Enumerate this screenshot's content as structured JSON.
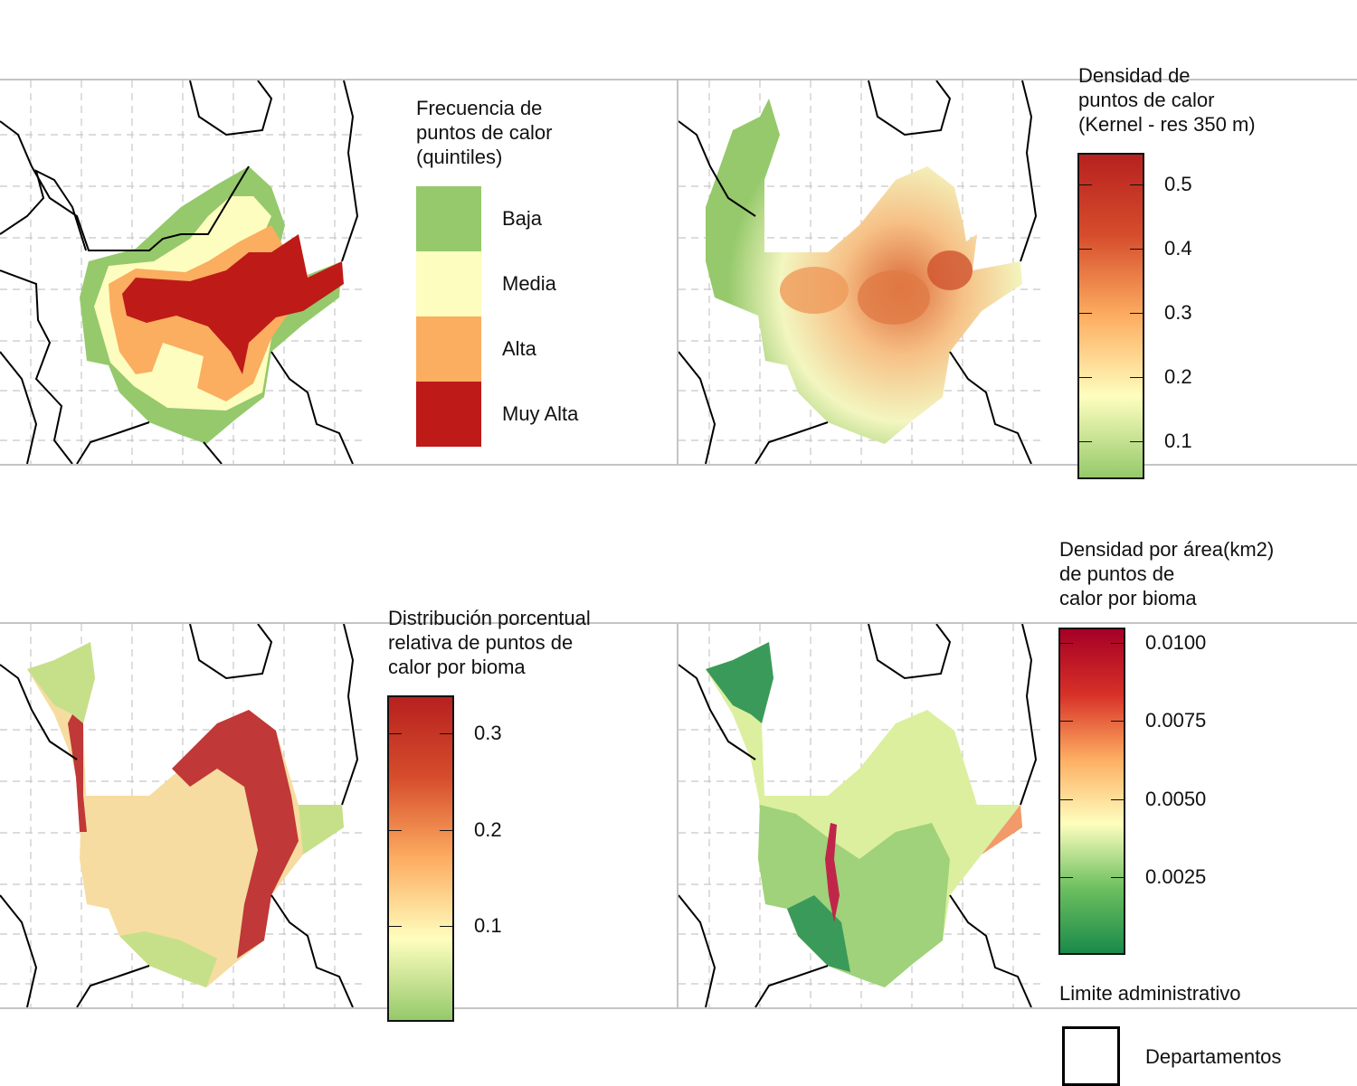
{
  "map_legend_titles": {
    "quintiles": "Frecuencia de\npuntos de calor\n(quintiles)",
    "kernel": "Densidad de\npuntos de calor\n(Kernel - res 350 m)",
    "percent": "Distribución porcentual\nrelativa de puntos de\ncalor por bioma",
    "area": "Densidad por área(km2)\nde puntos de\ncalor por bioma",
    "admin": "Limite administrativo"
  },
  "quintile_classes": [
    {
      "label": "Baja",
      "color": "#95c96b"
    },
    {
      "label": "Media",
      "color": "#fdfdbf"
    },
    {
      "label": "Alta",
      "color": "#fbad60"
    },
    {
      "label": "Muy Alta",
      "color": "#bd1a18"
    }
  ],
  "kernel_scale": {
    "min": 0.04,
    "max": 0.55,
    "ticks": [
      "0.1",
      "0.2",
      "0.3",
      "0.4",
      "0.5"
    ],
    "tick_values": [
      0.1,
      0.2,
      0.3,
      0.4,
      0.5
    ],
    "colors": [
      "#95c96b",
      "#fefebe",
      "#fdad61",
      "#d64d2c",
      "#b7211f"
    ]
  },
  "percent_scale": {
    "min": 0.0,
    "max": 0.34,
    "ticks": [
      "0.1",
      "0.2",
      "0.3"
    ],
    "tick_values": [
      0.1,
      0.2,
      0.3
    ],
    "colors": [
      "#95c96b",
      "#fefebe",
      "#fdad61",
      "#d64d2c",
      "#b7211f"
    ]
  },
  "area_scale": {
    "min": 0.0,
    "max": 0.0105,
    "ticks": [
      "0.0025",
      "0.0050",
      "0.0075",
      "0.0100"
    ],
    "tick_values": [
      0.0025,
      0.005,
      0.0075,
      0.01
    ],
    "colors": [
      "#1a8a4a",
      "#6cbf5f",
      "#fefebe",
      "#fdad61",
      "#d73027",
      "#a50026"
    ]
  },
  "admin_legend": {
    "label": "Departamentos"
  }
}
